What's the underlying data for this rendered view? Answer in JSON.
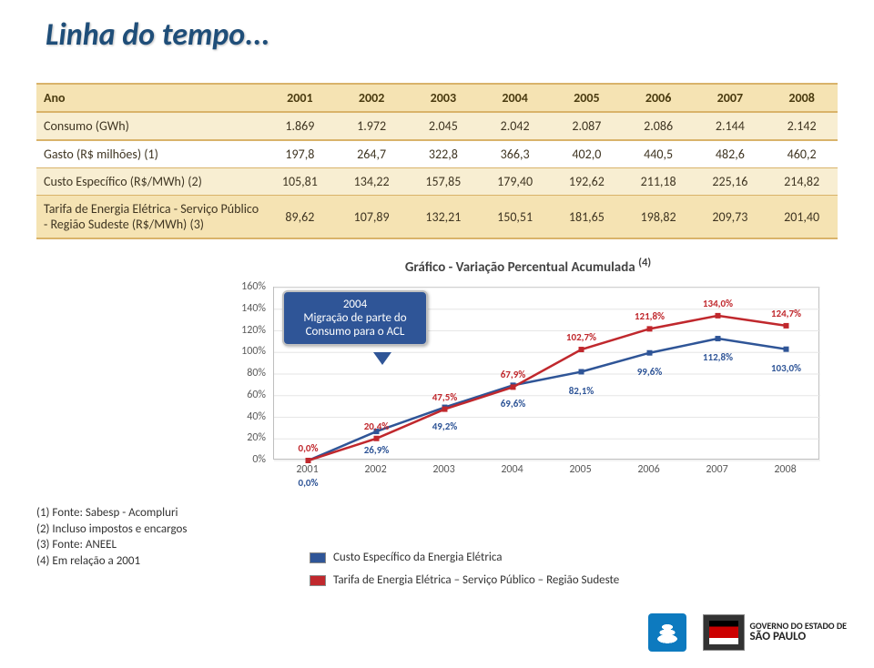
{
  "title": "Linha do tempo...",
  "table": {
    "header_label": "Ano",
    "years": [
      "2001",
      "2002",
      "2003",
      "2004",
      "2005",
      "2006",
      "2007",
      "2008"
    ],
    "rows": [
      {
        "label": "Consumo (GWh)",
        "values": [
          "1.869",
          "1.972",
          "2.045",
          "2.042",
          "2.087",
          "2.086",
          "2.144",
          "2.142"
        ]
      },
      {
        "label": "Gasto (R$ milhões) (1)",
        "values": [
          "197,8",
          "264,7",
          "322,8",
          "366,3",
          "402,0",
          "440,5",
          "482,6",
          "460,2"
        ]
      },
      {
        "label": "Custo Específico (R$/MWh) (2)",
        "values": [
          "105,81",
          "134,22",
          "157,85",
          "179,40",
          "192,62",
          "211,18",
          "225,16",
          "214,82"
        ]
      },
      {
        "label": "Tarifa de Energia Elétrica - Serviço Público - Região Sudeste (R$/MWh) (3)",
        "values": [
          "89,62",
          "107,89",
          "132,21",
          "150,51",
          "181,65",
          "198,82",
          "209,73",
          "201,40"
        ]
      }
    ]
  },
  "chart": {
    "title": "Gráfico - Variação Percentual Acumulada ",
    "title_sup": "(4)",
    "x_categories": [
      "2001",
      "2002",
      "2003",
      "2004",
      "2005",
      "2006",
      "2007",
      "2008"
    ],
    "y_ticks": [
      "0%",
      "20%",
      "40%",
      "60%",
      "80%",
      "100%",
      "120%",
      "140%",
      "160%"
    ],
    "y_min": 0,
    "y_max": 160,
    "series": [
      {
        "name": "Custo Específico da Energia Elétrica",
        "color": "#2f5597",
        "values": [
          0.0,
          26.9,
          49.2,
          69.6,
          82.1,
          99.6,
          112.8,
          103.0
        ],
        "label_texts": [
          "0,0%",
          "26,9%",
          "49,2%",
          "69,6%",
          "82,1%",
          "99,6%",
          "112,8%",
          "103,0%"
        ],
        "label_offsets": [
          18,
          14,
          14,
          14,
          14,
          14,
          14,
          14
        ]
      },
      {
        "name": "Tarifa de Energia Elétrica – Serviço Público – Região Sudeste",
        "color": "#c0282d",
        "values": [
          0.0,
          20.4,
          47.5,
          67.9,
          102.7,
          121.8,
          134.0,
          124.7
        ],
        "label_texts": [
          "0,0%",
          "20,4%",
          "47,5%",
          "67,9%",
          "102,7%",
          "121,8%",
          "134,0%",
          "124,7%"
        ],
        "label_offsets": [
          -14,
          -14,
          -14,
          -14,
          -14,
          -14,
          -14,
          -14
        ]
      }
    ],
    "callout": {
      "line1": "2004",
      "line2": "Migração de parte do Consumo para o ACL"
    }
  },
  "footnotes": [
    "(1) Fonte: Sabesp - Acompluri",
    "(2) Incluso impostos e encargos",
    "(3) Fonte: ANEEL",
    "(4) Em relação a 2001"
  ],
  "legend": [
    {
      "color": "#2f5597",
      "text": "Custo Específico da Energia Elétrica"
    },
    {
      "color": "#c0282d",
      "text": "Tarifa de Energia Elétrica – Serviço Público – Região Sudeste"
    }
  ],
  "logos": {
    "gov_line1": "GOVERNO DO ESTADO DE",
    "gov_line2": "SÃO PAULO"
  }
}
